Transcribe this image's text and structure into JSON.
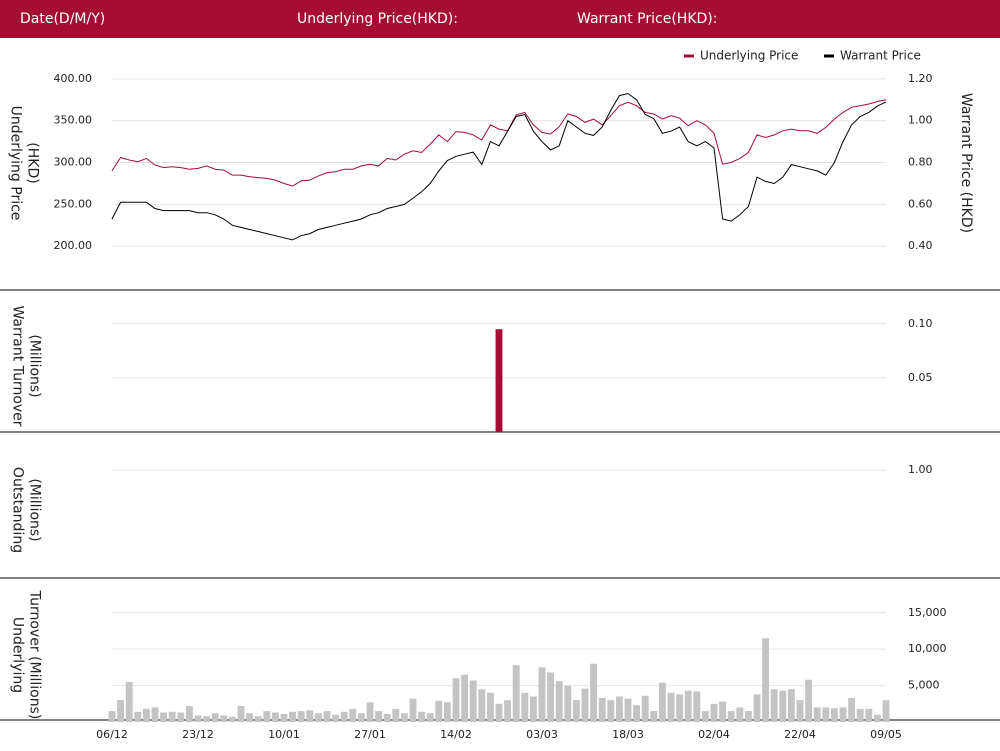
{
  "header": {
    "labels": [
      "Date(D/M/Y)",
      "Underlying Price(HKD):",
      "Warrant Price(HKD):"
    ]
  },
  "chart_data": [
    {
      "type": "line",
      "ylabel": [
        "Underlying Price",
        "(HKD)"
      ],
      "y2label": "Warrant  Price (HKD)",
      "ylim": [
        150,
        425
      ],
      "yticks": [
        {
          "value": 200,
          "label": "200.00"
        },
        {
          "value": 250,
          "label": "250.00"
        },
        {
          "value": 300,
          "label": "300.00"
        },
        {
          "value": 350,
          "label": "350.00"
        },
        {
          "value": 400,
          "label": "400.00"
        }
      ],
      "y2lim": [
        0.2,
        1.3
      ],
      "y2ticks": [
        {
          "value": 0.4,
          "label": "0.40"
        },
        {
          "value": 0.6,
          "label": "0.60"
        },
        {
          "value": 0.8,
          "label": "0.80"
        },
        {
          "value": 1.0,
          "label": "1.00"
        },
        {
          "value": 1.2,
          "label": "1.20"
        }
      ],
      "grid": true,
      "legend": "top-right",
      "series": [
        {
          "name": "Underlying Price",
          "color": "#a50d35",
          "values": [
            290,
            306,
            303,
            301,
            305,
            297,
            294,
            295,
            294,
            292,
            293,
            296,
            292,
            291,
            285,
            285,
            283,
            282,
            281,
            279,
            275,
            272,
            278,
            279,
            284,
            288,
            289,
            292,
            292,
            296,
            298,
            296,
            305,
            303,
            310,
            314,
            312,
            322,
            333,
            325,
            337,
            336,
            333,
            327,
            345,
            340,
            338,
            357,
            360,
            345,
            336,
            334,
            343,
            358,
            355,
            348,
            352,
            345,
            356,
            368,
            372,
            368,
            360,
            358,
            352,
            356,
            353,
            344,
            350,
            345,
            335,
            298,
            300,
            305,
            312,
            333,
            330,
            333,
            338,
            340,
            338,
            338,
            335,
            342,
            352,
            360,
            366,
            368,
            370,
            373,
            375
          ]
        },
        {
          "name": "Warrant Price",
          "color": "#000000",
          "axis": "y2",
          "values": [
            0.53,
            0.61,
            0.61,
            0.61,
            0.61,
            0.58,
            0.57,
            0.57,
            0.57,
            0.57,
            0.56,
            0.56,
            0.55,
            0.53,
            0.5,
            0.49,
            0.48,
            0.47,
            0.46,
            0.45,
            0.44,
            0.43,
            0.45,
            0.46,
            0.48,
            0.49,
            0.5,
            0.51,
            0.52,
            0.53,
            0.55,
            0.56,
            0.58,
            0.59,
            0.6,
            0.63,
            0.66,
            0.7,
            0.76,
            0.81,
            0.83,
            0.84,
            0.85,
            0.79,
            0.9,
            0.88,
            0.95,
            1.02,
            1.03,
            0.95,
            0.9,
            0.86,
            0.88,
            1.0,
            0.97,
            0.94,
            0.93,
            0.97,
            1.05,
            1.12,
            1.13,
            1.1,
            1.03,
            1.01,
            0.94,
            0.95,
            0.97,
            0.9,
            0.88,
            0.9,
            0.87,
            0.53,
            0.52,
            0.55,
            0.59,
            0.73,
            0.71,
            0.7,
            0.73,
            0.79,
            0.78,
            0.77,
            0.76,
            0.74,
            0.8,
            0.9,
            0.98,
            1.02,
            1.04,
            1.07,
            1.09
          ]
        }
      ]
    },
    {
      "type": "bar",
      "ylabel": [
        "Warrant  Turnover",
        "(Millions)"
      ],
      "color": "#a50d35",
      "ylim": [
        0,
        0.122
      ],
      "yticks": [
        {
          "value": 0.05,
          "label": "0.05"
        },
        {
          "value": 0.1,
          "label": "0.10"
        }
      ],
      "grid": true,
      "values": [
        0,
        0,
        0,
        0,
        0,
        0,
        0,
        0,
        0,
        0,
        0,
        0,
        0,
        0,
        0,
        0,
        0,
        0,
        0,
        0,
        0,
        0,
        0,
        0,
        0,
        0,
        0,
        0,
        0,
        0,
        0,
        0,
        0,
        0,
        0,
        0,
        0,
        0,
        0,
        0,
        0,
        0,
        0,
        0,
        0,
        0.095,
        0,
        0,
        0,
        0,
        0,
        0,
        0,
        0,
        0,
        0,
        0,
        0,
        0,
        0,
        0,
        0,
        0,
        0,
        0,
        0,
        0,
        0,
        0,
        0,
        0,
        0,
        0,
        0,
        0,
        0,
        0,
        0,
        0,
        0,
        0,
        0,
        0,
        0,
        0,
        0,
        0,
        0,
        0,
        0,
        0
      ]
    },
    {
      "type": "bar",
      "ylabel": [
        "Outstanding",
        "(Millions)"
      ],
      "ylim": [
        0,
        1.26
      ],
      "yticks": [
        {
          "value": 1,
          "label": "1.00"
        }
      ],
      "grid": true
    },
    {
      "type": "bar",
      "ylabel": [
        "Underlying",
        "Turnover (Millions)"
      ],
      "color": "#c4c4c4",
      "ylim": [
        0,
        18400
      ],
      "yticks": [
        {
          "value": 5000,
          "label": "5,000"
        },
        {
          "value": 10000,
          "label": "10,000"
        },
        {
          "value": 15000,
          "label": "15,000"
        }
      ],
      "grid": true,
      "categories": [
        "06/12",
        null,
        null,
        null,
        null,
        null,
        null,
        null,
        null,
        null,
        "23/12",
        null,
        null,
        null,
        null,
        null,
        null,
        null,
        null,
        null,
        "10/01",
        null,
        null,
        null,
        null,
        null,
        null,
        null,
        null,
        null,
        "27/01",
        null,
        null,
        null,
        null,
        null,
        null,
        null,
        null,
        null,
        "14/02",
        null,
        null,
        null,
        null,
        null,
        null,
        null,
        null,
        null,
        "03/03",
        null,
        null,
        null,
        null,
        null,
        null,
        null,
        null,
        null,
        "18/03",
        null,
        null,
        null,
        null,
        null,
        null,
        null,
        null,
        null,
        "02/04",
        null,
        null,
        null,
        null,
        null,
        null,
        null,
        null,
        null,
        "22/04",
        null,
        null,
        null,
        null,
        null,
        null,
        null,
        null,
        null,
        "09/05"
      ],
      "values": [
        1500,
        3000,
        5500,
        1400,
        1800,
        2000,
        1300,
        1400,
        1300,
        2200,
        900,
        800,
        1200,
        900,
        700,
        2200,
        1200,
        800,
        1500,
        1300,
        1100,
        1400,
        1500,
        1600,
        1200,
        1500,
        1000,
        1400,
        1800,
        1200,
        2700,
        1500,
        1100,
        1800,
        1200,
        3200,
        1400,
        1200,
        2900,
        2700,
        6000,
        6500,
        5700,
        4500,
        4000,
        2500,
        3000,
        7800,
        4000,
        3500,
        7500,
        6800,
        5600,
        5000,
        3000,
        4600,
        8000,
        3300,
        3000,
        3500,
        3200,
        2300,
        3600,
        1500,
        5400,
        4000,
        3800,
        4300,
        4200,
        1500,
        2500,
        2800,
        1500,
        2000,
        1500,
        3800,
        11500,
        4500,
        4300,
        4500,
        3000,
        5800,
        2000,
        2000,
        1900,
        2000,
        3300,
        1800,
        1800,
        1000,
        3000
      ]
    }
  ]
}
